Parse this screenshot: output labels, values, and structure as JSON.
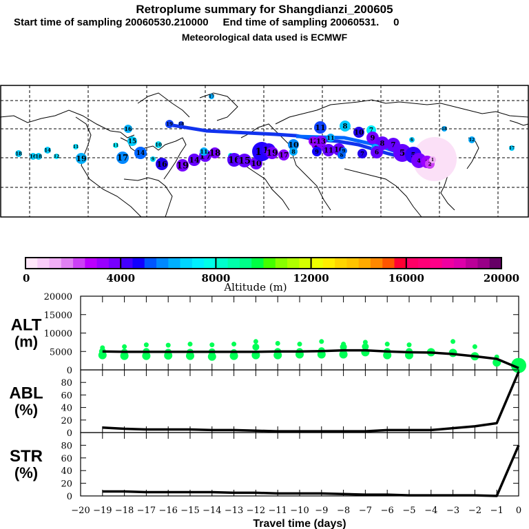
{
  "header": {
    "title": "Retroplume summary for Shangdianzi_200605",
    "subtitle": "Start time of sampling 20060530.210000     End time of sampling 20060531.     0",
    "met_data": "Meteorological data used is ECMWF"
  },
  "colorbar": {
    "label": "Altitude (m)",
    "ticks": [
      "0",
      "4000",
      "8000",
      "12000",
      "16000",
      "20000"
    ],
    "range": [
      0,
      20000
    ],
    "colors": [
      "#ffe6fa",
      "#f9ccf9",
      "#f0aef5",
      "#e080f2",
      "#cc40f5",
      "#bb00ff",
      "#9900ff",
      "#7700ff",
      "#4400ff",
      "#1100ff",
      "#0055ff",
      "#0088ff",
      "#00b0ff",
      "#00d5ff",
      "#00f0ff",
      "#00ffe8",
      "#00ffcc",
      "#00ffaa",
      "#00ff88",
      "#00ff44",
      "#44ff00",
      "#88ff00",
      "#b0ff00",
      "#d5ff00",
      "#eeff00",
      "#ffee00",
      "#ffd500",
      "#ffc400",
      "#ffaa00",
      "#ff8800",
      "#ff5500",
      "#ff0033",
      "#ff0066",
      "#ff0077",
      "#ff0088",
      "#f000a0",
      "#dd00aa",
      "#bb0099",
      "#990088",
      "#660066"
    ]
  },
  "map": {
    "plume_numbers_west": [
      "18",
      "16",
      "18",
      "14",
      "12",
      "11",
      "19",
      "17",
      "11",
      "15",
      "16",
      "10",
      "9",
      "16",
      "19",
      "14",
      "17",
      "18",
      "11",
      "12",
      "8",
      "16",
      "15",
      "10",
      "9",
      "14",
      "13",
      "19"
    ],
    "plume_numbers_east": [
      "11",
      "8",
      "7",
      "10",
      "9",
      "10",
      "8",
      "7",
      "6",
      "8",
      "6",
      "7",
      "5",
      "5",
      "4",
      "3",
      "2",
      "1",
      "18",
      "12",
      "17",
      "14",
      "13",
      "11",
      "10",
      "9"
    ]
  },
  "chart_data": [
    {
      "type": "line",
      "panel": "ALT",
      "ylabel": "ALT\n(m)",
      "ylabel_lines": [
        "ALT",
        "(m)"
      ],
      "ylim": [
        0,
        20000
      ],
      "yticks": [
        "0",
        "5000",
        "10000",
        "15000",
        "20000"
      ],
      "x": [
        -19,
        -18,
        -17,
        -16,
        -15,
        -14,
        -13,
        -12,
        -11,
        -10,
        -9,
        -8,
        -7,
        -6,
        -5,
        -4,
        -3,
        -2,
        -1,
        0
      ],
      "series": [
        {
          "name": "mean altitude",
          "values": [
            5000,
            4900,
            4900,
            4900,
            4900,
            4900,
            4900,
            4900,
            5000,
            5000,
            5100,
            5300,
            5300,
            5000,
            4800,
            4700,
            4300,
            3700,
            3000,
            500
          ]
        }
      ],
      "clusters": [
        {
          "x": -19,
          "alts": [
            6000,
            5000,
            4000
          ]
        },
        {
          "x": -18,
          "alts": [
            6300,
            4800,
            3800
          ]
        },
        {
          "x": -17,
          "alts": [
            6800,
            5000,
            3800
          ]
        },
        {
          "x": -16,
          "alts": [
            6700,
            4800,
            3900
          ]
        },
        {
          "x": -15,
          "alts": [
            7000,
            4800,
            3800
          ]
        },
        {
          "x": -14,
          "alts": [
            6800,
            4900,
            3600
          ]
        },
        {
          "x": -13,
          "alts": [
            7000,
            4700,
            3800
          ]
        },
        {
          "x": -12,
          "alts": [
            7700,
            6200,
            4000
          ]
        },
        {
          "x": -11,
          "alts": [
            7200,
            5000,
            4000
          ]
        },
        {
          "x": -10,
          "alts": [
            7000,
            5000,
            4200
          ]
        },
        {
          "x": -9,
          "alts": [
            7700,
            5200,
            4200
          ]
        },
        {
          "x": -8,
          "alts": [
            7000,
            6200,
            4200
          ]
        },
        {
          "x": -7,
          "alts": [
            7500,
            6300,
            4800
          ]
        },
        {
          "x": -6,
          "alts": [
            7000,
            5000,
            4000
          ]
        },
        {
          "x": -5,
          "alts": [
            6800,
            5000,
            4000
          ]
        },
        {
          "x": -4,
          "alts": [
            4800
          ]
        },
        {
          "x": -3,
          "alts": [
            7700,
            4600
          ]
        },
        {
          "x": -2,
          "alts": [
            6300,
            3700
          ]
        },
        {
          "x": -1,
          "alts": [
            3500,
            2000
          ]
        },
        {
          "x": 0,
          "alts": [
            1200
          ]
        }
      ],
      "cluster_color": "#00ff55"
    },
    {
      "type": "line",
      "panel": "ABL",
      "ylabel_lines": [
        "ABL",
        "(%)"
      ],
      "ylim": [
        0,
        100
      ],
      "yticks": [
        "0",
        "20",
        "40",
        "60",
        "80"
      ],
      "x": [
        -19,
        -18,
        -17,
        -16,
        -15,
        -14,
        -13,
        -12,
        -11,
        -10,
        -9,
        -8,
        -7,
        -6,
        -5,
        -4,
        -3,
        -2,
        -1,
        0
      ],
      "series": [
        {
          "name": "ABL fraction",
          "values": [
            8,
            6,
            5,
            5,
            5,
            4,
            4,
            3,
            2,
            2,
            2,
            2,
            2,
            4,
            4,
            4,
            7,
            10,
            15,
            97
          ]
        }
      ]
    },
    {
      "type": "line",
      "panel": "STR",
      "ylabel_lines": [
        "STR",
        "(%)"
      ],
      "ylim": [
        0,
        100
      ],
      "yticks": [
        "0",
        "20",
        "40",
        "60",
        "80"
      ],
      "xlabel": "Travel time (days)",
      "xticks": [
        "-20",
        "-19",
        "-18",
        "-17",
        "-16",
        "-15",
        "-14",
        "-13",
        "-12",
        "-11",
        "-10",
        "-9",
        "-8",
        "-7",
        "-6",
        "-5",
        "-4",
        "-3",
        "-2",
        "-1",
        "0"
      ],
      "x": [
        -19,
        -18,
        -17,
        -16,
        -15,
        -14,
        -13,
        -12,
        -11,
        -10,
        -9,
        -8,
        -7,
        -6,
        -5,
        -4,
        -3,
        -2,
        -1,
        0
      ],
      "series": [
        {
          "name": "STR fraction",
          "values": [
            7,
            7,
            6,
            6,
            6,
            6,
            5,
            5,
            4,
            4,
            4,
            3,
            2,
            2,
            1,
            1,
            1,
            1,
            0,
            80
          ]
        }
      ]
    }
  ]
}
